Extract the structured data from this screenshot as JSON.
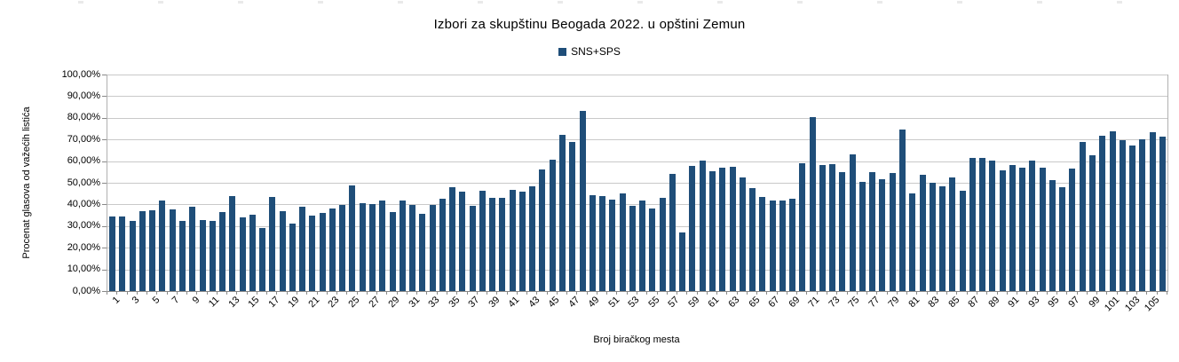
{
  "chart_data": {
    "type": "bar",
    "title": "Izbori za skupštinu Beogada 2022. u opštini Zemun",
    "xlabel": "Broj biračkog mesta",
    "ylabel": "Procenat glasova od važećih listića",
    "ylim": [
      0,
      100
    ],
    "ytick_step": 10,
    "ytick_labels": [
      "0,00%",
      "10,00%",
      "20,00%",
      "30,00%",
      "40,00%",
      "50,00%",
      "60,00%",
      "70,00%",
      "80,00%",
      "90,00%",
      "100,00%"
    ],
    "grid": true,
    "legend_position": "top-center",
    "x": [
      1,
      2,
      3,
      4,
      5,
      6,
      7,
      8,
      9,
      10,
      11,
      12,
      13,
      14,
      15,
      16,
      17,
      18,
      19,
      20,
      21,
      22,
      23,
      24,
      25,
      26,
      27,
      28,
      29,
      30,
      31,
      32,
      33,
      34,
      35,
      36,
      37,
      38,
      39,
      40,
      41,
      42,
      43,
      44,
      45,
      46,
      47,
      48,
      49,
      50,
      51,
      52,
      53,
      54,
      55,
      56,
      57,
      58,
      59,
      60,
      61,
      62,
      63,
      64,
      65,
      66,
      67,
      68,
      69,
      70,
      71,
      72,
      73,
      74,
      75,
      76,
      77,
      78,
      79,
      80,
      81,
      82,
      83,
      84,
      85,
      86,
      87,
      88,
      89,
      90,
      91,
      92,
      93,
      94,
      95,
      96,
      97,
      98,
      99,
      100,
      101,
      102,
      103,
      104,
      105,
      106
    ],
    "xtick_labels": [
      "1",
      "3",
      "5",
      "7",
      "9",
      "11",
      "13",
      "15",
      "17",
      "19",
      "21",
      "23",
      "25",
      "27",
      "29",
      "31",
      "33",
      "35",
      "37",
      "39",
      "41",
      "43",
      "45",
      "47",
      "49",
      "51",
      "53",
      "55",
      "57",
      "59",
      "61",
      "63",
      "65",
      "67",
      "69",
      "71",
      "73",
      "75",
      "77",
      "79",
      "81",
      "83",
      "85",
      "87",
      "89",
      "91",
      "93",
      "95",
      "97",
      "99",
      "101",
      "103",
      "105"
    ],
    "series": [
      {
        "name": "SNS+SPS",
        "color": "#1F4E79",
        "values": [
          34.6,
          34.6,
          32.3,
          37.0,
          37.2,
          41.8,
          37.6,
          32.2,
          38.9,
          32.6,
          32.4,
          36.4,
          44.0,
          34.0,
          35.4,
          29.0,
          43.3,
          37.0,
          31.0,
          38.8,
          35.0,
          36.2,
          38.1,
          39.7,
          48.8,
          40.4,
          40.0,
          41.8,
          36.5,
          41.8,
          39.7,
          35.6,
          39.7,
          42.7,
          48.0,
          45.9,
          39.2,
          46.3,
          42.9,
          43.1,
          46.7,
          45.9,
          48.3,
          56.2,
          60.5,
          72.2,
          69.0,
          83.1,
          44.1,
          43.9,
          42.2,
          45.2,
          39.4,
          41.9,
          38.0,
          42.9,
          54.1,
          26.9,
          57.9,
          60.3,
          55.2,
          57.1,
          57.5,
          52.6,
          47.5,
          43.3,
          41.8,
          41.9,
          42.6,
          58.9,
          80.3,
          58.1,
          58.6,
          55.1,
          63.3,
          50.6,
          54.8,
          51.6,
          54.5,
          74.4,
          44.9,
          53.6,
          49.9,
          48.2,
          52.3,
          46.5,
          61.3,
          61.3,
          60.1,
          55.7,
          58.4,
          56.8,
          60.4,
          57.1,
          51.3,
          48.0,
          56.4,
          68.7,
          62.7,
          71.6,
          73.7,
          69.7,
          67.1,
          70.0,
          73.4,
          71.5
        ]
      }
    ]
  }
}
